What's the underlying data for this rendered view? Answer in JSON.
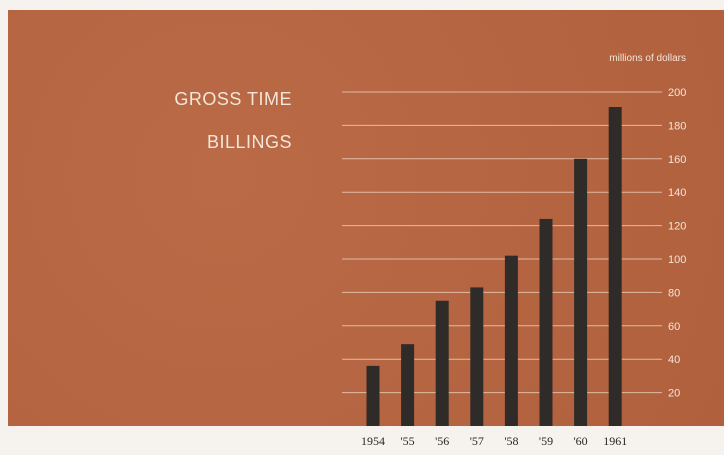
{
  "chart_data": {
    "type": "bar",
    "title_lines": [
      "GROSS TIME",
      "BILLINGS"
    ],
    "unit_label": "millions of dollars",
    "categories": [
      "1954",
      "'55",
      "'56",
      "'57",
      "'58",
      "'59",
      "'60",
      "1961"
    ],
    "values": [
      36,
      49,
      75,
      83,
      102,
      124,
      160,
      191
    ],
    "y_ticks": [
      20,
      40,
      60,
      80,
      100,
      120,
      140,
      160,
      180,
      200
    ],
    "ylim": [
      0,
      200
    ],
    "grid": true,
    "axis_position": "right",
    "colors": {
      "panel": "#b8643f",
      "bar": "#2f2b29",
      "grid": "#efd7c4",
      "text": "#f3e6d8",
      "category_text": "#2a2624"
    }
  }
}
